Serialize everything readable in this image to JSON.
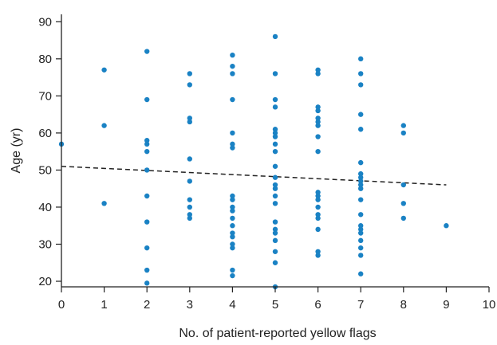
{
  "chart_data": {
    "type": "scatter",
    "title": "",
    "xlabel": "No. of patient-reported yellow flags",
    "ylabel": "Age (yr)",
    "xlim": [
      0,
      10
    ],
    "ylim": [
      18.5,
      92
    ],
    "x_ticks": [
      0,
      1,
      2,
      3,
      4,
      5,
      6,
      7,
      8,
      9,
      10
    ],
    "y_ticks": [
      20,
      30,
      40,
      50,
      60,
      70,
      80,
      90
    ],
    "grid": false,
    "marker_color": "#1a82c4",
    "trendline_color": "#222222",
    "trendline": {
      "x": [
        0,
        9
      ],
      "y": [
        51,
        46
      ]
    },
    "points": [
      {
        "x": 0,
        "y": 57
      },
      {
        "x": 1,
        "y": 77
      },
      {
        "x": 1,
        "y": 62
      },
      {
        "x": 1,
        "y": 41
      },
      {
        "x": 2,
        "y": 82
      },
      {
        "x": 2,
        "y": 69
      },
      {
        "x": 2,
        "y": 58
      },
      {
        "x": 2,
        "y": 57
      },
      {
        "x": 2,
        "y": 55
      },
      {
        "x": 2,
        "y": 50
      },
      {
        "x": 2,
        "y": 43
      },
      {
        "x": 2,
        "y": 36
      },
      {
        "x": 2,
        "y": 29
      },
      {
        "x": 2,
        "y": 23
      },
      {
        "x": 2,
        "y": 19.5
      },
      {
        "x": 3,
        "y": 76
      },
      {
        "x": 3,
        "y": 73
      },
      {
        "x": 3,
        "y": 64
      },
      {
        "x": 3,
        "y": 63
      },
      {
        "x": 3,
        "y": 53
      },
      {
        "x": 3,
        "y": 47
      },
      {
        "x": 3,
        "y": 42
      },
      {
        "x": 3,
        "y": 40
      },
      {
        "x": 3,
        "y": 38
      },
      {
        "x": 3,
        "y": 37
      },
      {
        "x": 4,
        "y": 81
      },
      {
        "x": 4,
        "y": 78
      },
      {
        "x": 4,
        "y": 76
      },
      {
        "x": 4,
        "y": 69
      },
      {
        "x": 4,
        "y": 60
      },
      {
        "x": 4,
        "y": 57
      },
      {
        "x": 4,
        "y": 56
      },
      {
        "x": 4,
        "y": 43
      },
      {
        "x": 4,
        "y": 42
      },
      {
        "x": 4,
        "y": 40
      },
      {
        "x": 4,
        "y": 39
      },
      {
        "x": 4,
        "y": 37
      },
      {
        "x": 4,
        "y": 35
      },
      {
        "x": 4,
        "y": 33
      },
      {
        "x": 4,
        "y": 32
      },
      {
        "x": 4,
        "y": 30
      },
      {
        "x": 4,
        "y": 29
      },
      {
        "x": 4,
        "y": 23
      },
      {
        "x": 4,
        "y": 21.5
      },
      {
        "x": 5,
        "y": 86
      },
      {
        "x": 5,
        "y": 76
      },
      {
        "x": 5,
        "y": 69
      },
      {
        "x": 5,
        "y": 67
      },
      {
        "x": 5,
        "y": 61
      },
      {
        "x": 5,
        "y": 60
      },
      {
        "x": 5,
        "y": 59
      },
      {
        "x": 5,
        "y": 57
      },
      {
        "x": 5,
        "y": 55
      },
      {
        "x": 5,
        "y": 51
      },
      {
        "x": 5,
        "y": 48
      },
      {
        "x": 5,
        "y": 46
      },
      {
        "x": 5,
        "y": 45
      },
      {
        "x": 5,
        "y": 43
      },
      {
        "x": 5,
        "y": 41
      },
      {
        "x": 5,
        "y": 36
      },
      {
        "x": 5,
        "y": 34
      },
      {
        "x": 5,
        "y": 33
      },
      {
        "x": 5,
        "y": 31
      },
      {
        "x": 5,
        "y": 28
      },
      {
        "x": 5,
        "y": 25
      },
      {
        "x": 5,
        "y": 18.5
      },
      {
        "x": 6,
        "y": 77
      },
      {
        "x": 6,
        "y": 76
      },
      {
        "x": 6,
        "y": 67
      },
      {
        "x": 6,
        "y": 66
      },
      {
        "x": 6,
        "y": 64
      },
      {
        "x": 6,
        "y": 63
      },
      {
        "x": 6,
        "y": 62
      },
      {
        "x": 6,
        "y": 59
      },
      {
        "x": 6,
        "y": 55
      },
      {
        "x": 6,
        "y": 44
      },
      {
        "x": 6,
        "y": 43
      },
      {
        "x": 6,
        "y": 42
      },
      {
        "x": 6,
        "y": 40
      },
      {
        "x": 6,
        "y": 38
      },
      {
        "x": 6,
        "y": 37
      },
      {
        "x": 6,
        "y": 34
      },
      {
        "x": 6,
        "y": 28
      },
      {
        "x": 6,
        "y": 27
      },
      {
        "x": 7,
        "y": 80
      },
      {
        "x": 7,
        "y": 76
      },
      {
        "x": 7,
        "y": 73
      },
      {
        "x": 7,
        "y": 65
      },
      {
        "x": 7,
        "y": 61
      },
      {
        "x": 7,
        "y": 52
      },
      {
        "x": 7,
        "y": 49
      },
      {
        "x": 7,
        "y": 48
      },
      {
        "x": 7,
        "y": 47
      },
      {
        "x": 7,
        "y": 46
      },
      {
        "x": 7,
        "y": 45
      },
      {
        "x": 7,
        "y": 42
      },
      {
        "x": 7,
        "y": 38
      },
      {
        "x": 7,
        "y": 35
      },
      {
        "x": 7,
        "y": 34
      },
      {
        "x": 7,
        "y": 33
      },
      {
        "x": 7,
        "y": 31
      },
      {
        "x": 7,
        "y": 29
      },
      {
        "x": 7,
        "y": 27
      },
      {
        "x": 7,
        "y": 22
      },
      {
        "x": 8,
        "y": 62
      },
      {
        "x": 8,
        "y": 60
      },
      {
        "x": 8,
        "y": 46
      },
      {
        "x": 8,
        "y": 41
      },
      {
        "x": 8,
        "y": 37
      },
      {
        "x": 9,
        "y": 35
      }
    ]
  }
}
